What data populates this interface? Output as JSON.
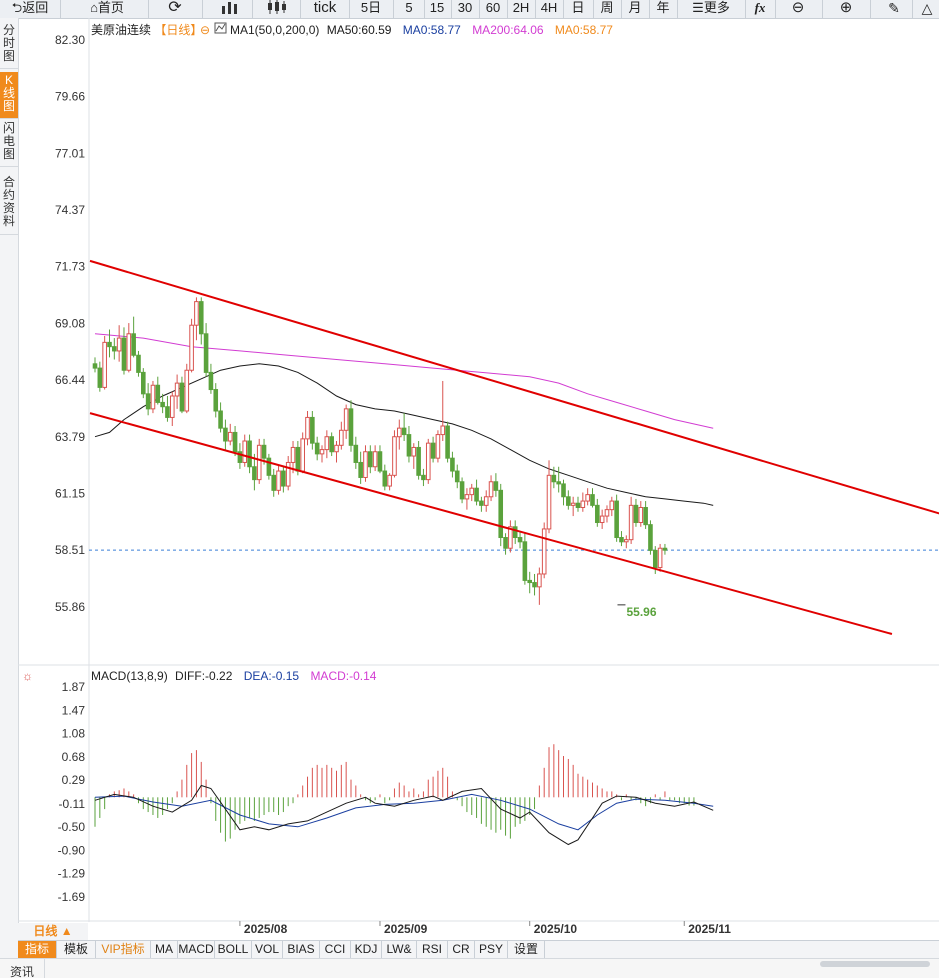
{
  "toolbar": {
    "back_label": "返回",
    "home_label": "首页",
    "tick_label": "tick",
    "periods": [
      "5日",
      "5",
      "15",
      "30",
      "60",
      "2H",
      "4H",
      "日",
      "周",
      "月",
      "年"
    ],
    "more_label": "更多",
    "fx_label": "fx"
  },
  "sidebar": {
    "tabs": [
      "分时图",
      "K线图",
      "闪电图",
      "合约资料"
    ],
    "active_tab": "K线图"
  },
  "main_legend": {
    "instrument": "美原油连续",
    "period_tag": "【日线】",
    "ma1": "MA1(50,0,200,0)",
    "ma50": "MA50:60.59",
    "ma0": "MA0:58.77",
    "ma200": "MA200:64.06",
    "ma0b": "MA0:58.77"
  },
  "macd_legend": {
    "name": "MACD(13,8,9)",
    "diff": "DIFF:-0.22",
    "dea": "DEA:-0.15",
    "macd": "MACD:-0.14"
  },
  "colors": {
    "up": "#d9534f",
    "down": "#5aa23c",
    "ma50": "#1a1a1a",
    "ma200": "#d23cd2",
    "channel": "#e00000",
    "dea": "#1a3fa0",
    "macd_text": "#d23cd2",
    "ma0_text": "#f08a1c",
    "accent": "#f08a1c"
  },
  "chart_data": {
    "type": "candlestick",
    "price_axis_ticks": [
      "82.30",
      "79.66",
      "77.01",
      "74.37",
      "71.73",
      "69.08",
      "66.44",
      "63.79",
      "61.15",
      "58.51",
      "55.86"
    ],
    "price_range": [
      54.5,
      83.0
    ],
    "macd_axis_ticks": [
      "1.87",
      "1.47",
      "1.08",
      "0.68",
      "0.29",
      "-0.11",
      "-0.50",
      "-0.90",
      "-1.29",
      "-1.69"
    ],
    "macd_range": [
      -2.05,
      2.05
    ],
    "date_labels": [
      {
        "label": "2025/08",
        "index": 30
      },
      {
        "label": "2025/09",
        "index": 59
      },
      {
        "label": "2025/10",
        "index": 90
      },
      {
        "label": "2025/11",
        "index": 122
      }
    ],
    "current_price_line": 58.51,
    "low_annotation": {
      "label": "55.96",
      "index": 109,
      "value": 55.96
    },
    "channel_upper": [
      {
        "index": 0,
        "value": 72.0
      },
      {
        "index": 199,
        "value": 58.6
      }
    ],
    "channel_lower": [
      {
        "index": 0,
        "value": 64.9
      },
      {
        "index": 165,
        "value": 54.6
      }
    ],
    "ohlc": [
      [
        67.2,
        67.5,
        66.8,
        67.0
      ],
      [
        67.0,
        67.3,
        65.9,
        66.1
      ],
      [
        66.1,
        68.5,
        66.0,
        68.2
      ],
      [
        68.2,
        68.8,
        67.5,
        68.0
      ],
      [
        68.0,
        68.4,
        67.4,
        67.8
      ],
      [
        67.8,
        69.0,
        67.3,
        68.4
      ],
      [
        68.4,
        68.9,
        66.7,
        66.9
      ],
      [
        66.9,
        69.1,
        66.8,
        68.6
      ],
      [
        68.6,
        69.4,
        67.5,
        67.6
      ],
      [
        67.6,
        67.8,
        66.6,
        66.8
      ],
      [
        66.8,
        67.0,
        65.6,
        65.8
      ],
      [
        65.8,
        66.3,
        64.8,
        65.1
      ],
      [
        65.1,
        66.4,
        64.9,
        66.2
      ],
      [
        66.2,
        66.6,
        65.3,
        65.4
      ],
      [
        65.4,
        65.8,
        64.9,
        65.2
      ],
      [
        65.2,
        65.7,
        64.5,
        64.7
      ],
      [
        64.7,
        65.9,
        64.3,
        65.7
      ],
      [
        65.7,
        66.7,
        65.1,
        66.3
      ],
      [
        66.3,
        66.6,
        64.9,
        65.0
      ],
      [
        65.0,
        67.2,
        64.9,
        66.9
      ],
      [
        66.9,
        69.3,
        66.8,
        69.0
      ],
      [
        69.0,
        70.3,
        68.3,
        70.1
      ],
      [
        70.1,
        70.3,
        68.1,
        68.6
      ],
      [
        68.6,
        69.1,
        66.6,
        66.8
      ],
      [
        66.8,
        67.2,
        65.8,
        66.0
      ],
      [
        66.0,
        66.3,
        64.7,
        65.0
      ],
      [
        65.0,
        65.4,
        64.0,
        64.2
      ],
      [
        64.2,
        64.6,
        63.2,
        63.6
      ],
      [
        63.6,
        64.4,
        63.4,
        64.0
      ],
      [
        64.0,
        64.3,
        62.9,
        63.1
      ],
      [
        63.1,
        63.5,
        62.3,
        62.6
      ],
      [
        62.6,
        63.9,
        62.4,
        63.6
      ],
      [
        63.6,
        63.9,
        62.1,
        62.4
      ],
      [
        62.4,
        63.0,
        61.3,
        61.8
      ],
      [
        61.8,
        63.7,
        61.6,
        63.4
      ],
      [
        63.4,
        63.7,
        62.5,
        62.8
      ],
      [
        62.8,
        63.0,
        61.8,
        62.0
      ],
      [
        62.0,
        62.3,
        61.0,
        61.3
      ],
      [
        61.3,
        62.5,
        61.1,
        62.2
      ],
      [
        62.2,
        62.4,
        61.2,
        61.5
      ],
      [
        61.5,
        62.9,
        61.3,
        62.6
      ],
      [
        62.6,
        63.6,
        62.1,
        63.3
      ],
      [
        63.3,
        63.6,
        62.0,
        62.2
      ],
      [
        62.2,
        64.0,
        62.1,
        63.7
      ],
      [
        63.7,
        65.0,
        63.4,
        64.7
      ],
      [
        64.7,
        65.0,
        63.2,
        63.5
      ],
      [
        63.5,
        63.8,
        62.7,
        63.0
      ],
      [
        63.0,
        63.4,
        62.6,
        63.2
      ],
      [
        63.2,
        64.1,
        62.8,
        63.8
      ],
      [
        63.8,
        64.0,
        62.9,
        63.1
      ],
      [
        63.1,
        63.6,
        62.6,
        63.4
      ],
      [
        63.4,
        64.5,
        63.2,
        64.1
      ],
      [
        64.1,
        65.3,
        63.7,
        65.1
      ],
      [
        65.1,
        65.5,
        63.1,
        63.4
      ],
      [
        63.4,
        63.8,
        62.3,
        62.6
      ],
      [
        62.6,
        63.1,
        61.6,
        61.9
      ],
      [
        61.9,
        63.4,
        61.7,
        63.1
      ],
      [
        63.1,
        63.4,
        62.1,
        62.4
      ],
      [
        62.4,
        63.4,
        62.2,
        63.1
      ],
      [
        63.1,
        63.4,
        62.1,
        62.2
      ],
      [
        62.2,
        62.5,
        61.3,
        61.5
      ],
      [
        61.5,
        62.1,
        61.3,
        62.0
      ],
      [
        62.0,
        64.1,
        61.9,
        63.8
      ],
      [
        63.8,
        64.6,
        63.2,
        64.2
      ],
      [
        64.2,
        64.9,
        63.6,
        63.9
      ],
      [
        63.9,
        64.3,
        62.6,
        62.9
      ],
      [
        62.9,
        63.5,
        62.3,
        63.3
      ],
      [
        63.3,
        63.6,
        61.8,
        62.0
      ],
      [
        62.0,
        62.3,
        61.5,
        61.8
      ],
      [
        61.8,
        63.7,
        61.6,
        63.5
      ],
      [
        63.5,
        63.8,
        62.6,
        62.8
      ],
      [
        62.8,
        64.1,
        62.6,
        63.9
      ],
      [
        63.9,
        66.4,
        63.6,
        64.3
      ],
      [
        64.3,
        64.5,
        62.6,
        62.8
      ],
      [
        62.8,
        63.1,
        61.9,
        62.2
      ],
      [
        62.2,
        62.5,
        61.4,
        61.7
      ],
      [
        61.7,
        61.9,
        60.7,
        60.9
      ],
      [
        60.9,
        61.4,
        60.4,
        61.1
      ],
      [
        61.1,
        61.6,
        60.8,
        61.4
      ],
      [
        61.4,
        61.8,
        60.6,
        60.8
      ],
      [
        60.8,
        61.0,
        60.3,
        60.6
      ],
      [
        60.6,
        61.3,
        60.3,
        61.0
      ],
      [
        61.0,
        62.0,
        60.8,
        61.7
      ],
      [
        61.7,
        62.1,
        61.0,
        61.3
      ],
      [
        61.3,
        61.6,
        58.7,
        59.1
      ],
      [
        59.1,
        59.3,
        58.3,
        58.6
      ],
      [
        58.6,
        59.9,
        58.4,
        59.6
      ],
      [
        59.6,
        59.9,
        58.8,
        59.1
      ],
      [
        59.1,
        59.4,
        58.6,
        58.9
      ],
      [
        58.9,
        59.3,
        56.9,
        57.1
      ],
      [
        57.1,
        57.5,
        56.5,
        57.0
      ],
      [
        57.0,
        57.4,
        56.4,
        56.8
      ],
      [
        56.8,
        57.7,
        55.96,
        57.4
      ],
      [
        57.4,
        59.8,
        57.2,
        59.5
      ],
      [
        59.5,
        62.7,
        59.3,
        62.0
      ],
      [
        62.0,
        62.4,
        61.4,
        61.7
      ],
      [
        61.7,
        62.4,
        61.2,
        61.6
      ],
      [
        61.6,
        61.8,
        60.6,
        61.0
      ],
      [
        61.0,
        61.3,
        60.4,
        60.6
      ],
      [
        60.6,
        61.0,
        60.1,
        60.7
      ],
      [
        60.7,
        61.0,
        60.3,
        60.5
      ],
      [
        60.5,
        61.2,
        60.3,
        60.8
      ],
      [
        60.8,
        61.4,
        60.6,
        61.1
      ],
      [
        61.1,
        61.4,
        60.5,
        60.6
      ],
      [
        60.6,
        60.9,
        59.6,
        59.8
      ],
      [
        59.8,
        60.4,
        59.5,
        60.1
      ],
      [
        60.1,
        60.6,
        59.8,
        60.4
      ],
      [
        60.4,
        61.0,
        60.1,
        60.8
      ],
      [
        60.8,
        61.1,
        58.9,
        59.1
      ],
      [
        59.1,
        59.4,
        58.7,
        58.9
      ],
      [
        58.9,
        59.2,
        58.6,
        59.0
      ],
      [
        59.0,
        61.0,
        58.8,
        60.6
      ],
      [
        60.6,
        60.9,
        59.6,
        59.8
      ],
      [
        59.8,
        60.8,
        59.6,
        60.5
      ],
      [
        60.5,
        60.8,
        59.5,
        59.7
      ],
      [
        59.7,
        59.9,
        58.3,
        58.5
      ],
      [
        58.5,
        58.7,
        57.4,
        57.7
      ],
      [
        57.7,
        58.8,
        57.5,
        58.6
      ],
      [
        58.6,
        58.8,
        58.3,
        58.51
      ]
    ],
    "ma50": [
      [
        0,
        63.8
      ],
      [
        3,
        64.0
      ],
      [
        6,
        64.6
      ],
      [
        10,
        65.2
      ],
      [
        14,
        65.7
      ],
      [
        18,
        66.1
      ],
      [
        22,
        66.5
      ],
      [
        26,
        66.9
      ],
      [
        30,
        67.1
      ],
      [
        34,
        67.2
      ],
      [
        38,
        67.1
      ],
      [
        42,
        66.8
      ],
      [
        46,
        66.3
      ],
      [
        50,
        65.7
      ],
      [
        54,
        65.3
      ],
      [
        58,
        65.1
      ],
      [
        62,
        65.0
      ],
      [
        66,
        64.8
      ],
      [
        70,
        64.6
      ],
      [
        74,
        64.4
      ],
      [
        78,
        64.1
      ],
      [
        82,
        63.7
      ],
      [
        86,
        63.2
      ],
      [
        90,
        62.7
      ],
      [
        94,
        62.3
      ],
      [
        98,
        62.0
      ],
      [
        102,
        61.7
      ],
      [
        106,
        61.4
      ],
      [
        110,
        61.2
      ],
      [
        114,
        61.0
      ],
      [
        118,
        60.9
      ],
      [
        122,
        60.8
      ],
      [
        126,
        60.7
      ],
      [
        128,
        60.6
      ]
    ],
    "ma200": [
      [
        0,
        68.6
      ],
      [
        10,
        68.4
      ],
      [
        20,
        68.0
      ],
      [
        30,
        67.8
      ],
      [
        40,
        67.6
      ],
      [
        50,
        67.4
      ],
      [
        60,
        67.2
      ],
      [
        70,
        67.0
      ],
      [
        80,
        66.8
      ],
      [
        90,
        66.6
      ],
      [
        96,
        66.3
      ],
      [
        102,
        65.8
      ],
      [
        108,
        65.4
      ],
      [
        114,
        65.0
      ],
      [
        120,
        64.6
      ],
      [
        128,
        64.2
      ]
    ],
    "macd_diff": [
      [
        0,
        -0.05
      ],
      [
        4,
        0.05
      ],
      [
        8,
        0.0
      ],
      [
        12,
        -0.15
      ],
      [
        16,
        -0.25
      ],
      [
        20,
        -0.05
      ],
      [
        22,
        0.2
      ],
      [
        24,
        0.15
      ],
      [
        27,
        -0.2
      ],
      [
        30,
        -0.55
      ],
      [
        33,
        -0.5
      ],
      [
        36,
        -0.55
      ],
      [
        40,
        -0.45
      ],
      [
        44,
        -0.4
      ],
      [
        48,
        -0.25
      ],
      [
        52,
        -0.1
      ],
      [
        56,
        0.0
      ],
      [
        58,
        -0.1
      ],
      [
        62,
        -0.15
      ],
      [
        66,
        -0.05
      ],
      [
        70,
        0.02
      ],
      [
        72,
        -0.05
      ],
      [
        76,
        0.1
      ],
      [
        80,
        0.15
      ],
      [
        84,
        -0.2
      ],
      [
        88,
        -0.35
      ],
      [
        90,
        -0.25
      ],
      [
        94,
        -0.6
      ],
      [
        98,
        -0.8
      ],
      [
        100,
        -0.72
      ],
      [
        103,
        -0.35
      ],
      [
        105,
        -0.1
      ],
      [
        108,
        0.02
      ],
      [
        112,
        0.0
      ],
      [
        116,
        -0.1
      ],
      [
        120,
        -0.15
      ],
      [
        124,
        -0.08
      ],
      [
        128,
        -0.22
      ]
    ],
    "macd_dea": [
      [
        0,
        0.0
      ],
      [
        6,
        0.02
      ],
      [
        12,
        -0.08
      ],
      [
        18,
        -0.15
      ],
      [
        24,
        -0.05
      ],
      [
        30,
        -0.3
      ],
      [
        36,
        -0.45
      ],
      [
        42,
        -0.5
      ],
      [
        48,
        -0.35
      ],
      [
        54,
        -0.18
      ],
      [
        60,
        -0.12
      ],
      [
        66,
        -0.1
      ],
      [
        72,
        -0.05
      ],
      [
        78,
        0.05
      ],
      [
        84,
        -0.05
      ],
      [
        90,
        -0.2
      ],
      [
        96,
        -0.45
      ],
      [
        100,
        -0.55
      ],
      [
        104,
        -0.3
      ],
      [
        108,
        -0.1
      ],
      [
        112,
        -0.03
      ],
      [
        118,
        -0.05
      ],
      [
        124,
        -0.1
      ],
      [
        128,
        -0.15
      ]
    ],
    "macd_hist": [
      -0.5,
      -0.35,
      -0.2,
      0.05,
      0.1,
      0.12,
      0.15,
      0.1,
      0.05,
      -0.1,
      -0.2,
      -0.25,
      -0.3,
      -0.35,
      -0.3,
      -0.2,
      -0.1,
      0.1,
      0.3,
      0.55,
      0.75,
      0.8,
      0.6,
      0.3,
      -0.1,
      -0.4,
      -0.6,
      -0.75,
      -0.7,
      -0.55,
      -0.45,
      -0.4,
      -0.35,
      -0.4,
      -0.35,
      -0.3,
      -0.25,
      -0.25,
      -0.3,
      -0.25,
      -0.15,
      -0.1,
      0.05,
      0.2,
      0.35,
      0.5,
      0.55,
      0.5,
      0.55,
      0.5,
      0.45,
      0.55,
      0.6,
      0.3,
      0.2,
      0.05,
      -0.05,
      -0.1,
      -0.05,
      0.05,
      -0.1,
      -0.05,
      0.15,
      0.25,
      0.2,
      0.1,
      0.15,
      0.05,
      0.1,
      0.3,
      0.35,
      0.45,
      0.5,
      0.35,
      0.1,
      -0.05,
      -0.15,
      -0.25,
      -0.3,
      -0.35,
      -0.45,
      -0.5,
      -0.55,
      -0.6,
      -0.55,
      -0.65,
      -0.7,
      -0.5,
      -0.45,
      -0.4,
      -0.3,
      -0.2,
      0.2,
      0.5,
      0.85,
      0.9,
      0.8,
      0.7,
      0.65,
      0.55,
      0.4,
      0.35,
      0.3,
      0.25,
      0.2,
      0.15,
      0.1,
      0.1,
      0.05,
      -0.05,
      0.05,
      -0.05,
      -0.05,
      -0.1,
      -0.15,
      -0.1,
      0.05,
      -0.05,
      0.1,
      -0.05,
      -0.05,
      -0.1,
      -0.1,
      -0.14,
      -0.14
    ]
  },
  "bottom": {
    "period_label": "日线 ▲",
    "tabs": [
      "指标",
      "模板",
      "VIP指标",
      "MA",
      "MACD",
      "BOLL",
      "VOL",
      "BIAS",
      "CCI",
      "KDJ",
      "LW&",
      "RSI",
      "CR",
      "PSY",
      "设置"
    ],
    "active_tab": "指标"
  },
  "footer": {
    "label": "资讯"
  }
}
